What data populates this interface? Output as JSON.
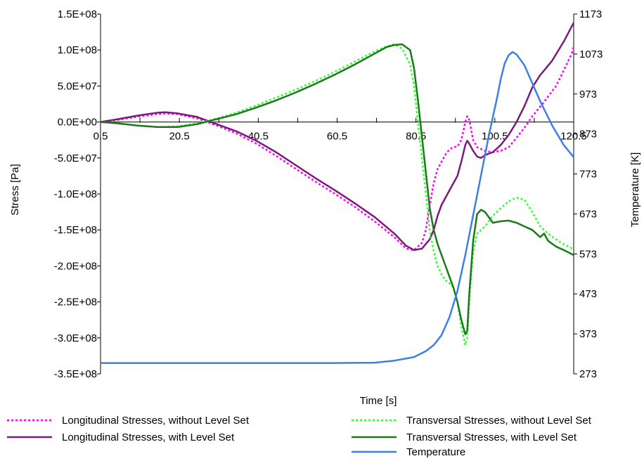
{
  "chart_data": {
    "type": "line",
    "xlabel": "Time [s]",
    "ylabel": "Stress [Pa]",
    "y2label": "Temperature [K]",
    "xlim": [
      0.5,
      120.5
    ],
    "ylim": [
      -350000000,
      150000000
    ],
    "y2lim": [
      273,
      1173
    ],
    "x_ticks": [
      "0.5",
      "20.5",
      "40.5",
      "60.5",
      "80.5",
      "100.5",
      "120.5"
    ],
    "y_ticks": [
      "1.5E+08",
      "1.0E+08",
      "5.0E+07",
      "0.0E+00",
      "-5.0E+07",
      "-1.0E+08",
      "-1.5E+08",
      "-2.0E+08",
      "-2.5E+08",
      "-3.0E+08",
      "-3.5E+08"
    ],
    "y2_ticks": [
      "1173",
      "1073",
      "973",
      "873",
      "773",
      "673",
      "573",
      "473",
      "373",
      "273"
    ],
    "legend": "bottom",
    "grid": false,
    "series": [
      {
        "name": "Longitudinal Stresses, without Level Set",
        "axis": "left",
        "color": "#ff00ff",
        "style": "dotted",
        "points": [
          [
            0.5,
            0
          ],
          [
            5,
            3000000
          ],
          [
            10,
            7500000
          ],
          [
            15,
            11000000
          ],
          [
            17,
            12000000
          ],
          [
            20,
            11000000
          ],
          [
            25,
            5000000
          ],
          [
            30,
            -5000000
          ],
          [
            35,
            -16000000
          ],
          [
            40,
            -30000000
          ],
          [
            45,
            -47000000
          ],
          [
            50,
            -65000000
          ],
          [
            55,
            -83000000
          ],
          [
            60,
            -100000000
          ],
          [
            65,
            -118000000
          ],
          [
            70,
            -138000000
          ],
          [
            75,
            -160000000
          ],
          [
            78,
            -176000000
          ],
          [
            80,
            -178000000
          ],
          [
            82,
            -168000000
          ],
          [
            83,
            -150000000
          ],
          [
            84,
            -115000000
          ],
          [
            85,
            -85000000
          ],
          [
            86,
            -65000000
          ],
          [
            87,
            -55000000
          ],
          [
            88,
            -45000000
          ],
          [
            89,
            -38000000
          ],
          [
            90,
            -35000000
          ],
          [
            91,
            -34000000
          ],
          [
            92,
            -25000000
          ],
          [
            93,
            0
          ],
          [
            93.5,
            8000000
          ],
          [
            94,
            3000000
          ],
          [
            95,
            -25000000
          ],
          [
            96,
            -35000000
          ],
          [
            98,
            -40000000
          ],
          [
            100,
            -42000000
          ],
          [
            102,
            -40000000
          ],
          [
            104,
            -35000000
          ],
          [
            106,
            -22000000
          ],
          [
            108,
            -8000000
          ],
          [
            110,
            8000000
          ],
          [
            113,
            28000000
          ],
          [
            116,
            50000000
          ],
          [
            118,
            72000000
          ],
          [
            120,
            95000000
          ],
          [
            120.5,
            105000000
          ]
        ]
      },
      {
        "name": "Longitudinal Stresses, with Level Set",
        "axis": "left",
        "color": "#7b1a7b",
        "style": "solid",
        "points": [
          [
            0.5,
            0
          ],
          [
            5,
            4000000
          ],
          [
            10,
            9000000
          ],
          [
            15,
            13000000
          ],
          [
            17,
            13500000
          ],
          [
            20,
            12000000
          ],
          [
            25,
            7000000
          ],
          [
            30,
            -3000000
          ],
          [
            35,
            -13000000
          ],
          [
            40,
            -26000000
          ],
          [
            45,
            -42000000
          ],
          [
            50,
            -60000000
          ],
          [
            55,
            -78000000
          ],
          [
            60,
            -95000000
          ],
          [
            65,
            -113000000
          ],
          [
            70,
            -132000000
          ],
          [
            75,
            -155000000
          ],
          [
            78,
            -172000000
          ],
          [
            80,
            -178000000
          ],
          [
            82,
            -176000000
          ],
          [
            84,
            -163000000
          ],
          [
            85,
            -150000000
          ],
          [
            86,
            -130000000
          ],
          [
            87,
            -115000000
          ],
          [
            88,
            -105000000
          ],
          [
            89,
            -95000000
          ],
          [
            90,
            -85000000
          ],
          [
            91,
            -75000000
          ],
          [
            92,
            -55000000
          ],
          [
            93,
            -32000000
          ],
          [
            93.5,
            -26000000
          ],
          [
            94,
            -30000000
          ],
          [
            95,
            -40000000
          ],
          [
            96,
            -48000000
          ],
          [
            97,
            -50000000
          ],
          [
            98,
            -46000000
          ],
          [
            100,
            -42000000
          ],
          [
            102,
            -32000000
          ],
          [
            104,
            -18000000
          ],
          [
            106,
            0
          ],
          [
            108,
            22000000
          ],
          [
            110,
            48000000
          ],
          [
            112,
            65000000
          ],
          [
            115,
            85000000
          ],
          [
            118,
            112000000
          ],
          [
            120.5,
            138000000
          ]
        ]
      },
      {
        "name": "Transversal Stresses, without Level Set",
        "axis": "left",
        "color": "#33ff33",
        "style": "dotted",
        "points": [
          [
            0.5,
            0
          ],
          [
            5,
            -2000000
          ],
          [
            10,
            -5000000
          ],
          [
            15,
            -7000000
          ],
          [
            20,
            -6000000
          ],
          [
            25,
            -2000000
          ],
          [
            30,
            5000000
          ],
          [
            35,
            13000000
          ],
          [
            40,
            23000000
          ],
          [
            45,
            34000000
          ],
          [
            50,
            45000000
          ],
          [
            55,
            57000000
          ],
          [
            60,
            70000000
          ],
          [
            65,
            84000000
          ],
          [
            70,
            98000000
          ],
          [
            73,
            105000000
          ],
          [
            75,
            108000000
          ],
          [
            77,
            102000000
          ],
          [
            79,
            80000000
          ],
          [
            80,
            50000000
          ],
          [
            81,
            0
          ],
          [
            82,
            -50000000
          ],
          [
            83,
            -100000000
          ],
          [
            84,
            -150000000
          ],
          [
            85,
            -180000000
          ],
          [
            86,
            -200000000
          ],
          [
            87,
            -212000000
          ],
          [
            88,
            -220000000
          ],
          [
            89,
            -224000000
          ],
          [
            90,
            -230000000
          ],
          [
            91,
            -250000000
          ],
          [
            92,
            -285000000
          ],
          [
            93,
            -310000000
          ],
          [
            93.5,
            -300000000
          ],
          [
            94,
            -250000000
          ],
          [
            95,
            -180000000
          ],
          [
            96,
            -155000000
          ],
          [
            98,
            -145000000
          ],
          [
            100,
            -130000000
          ],
          [
            102,
            -120000000
          ],
          [
            104,
            -110000000
          ],
          [
            106,
            -105000000
          ],
          [
            108,
            -108000000
          ],
          [
            110,
            -125000000
          ],
          [
            112,
            -145000000
          ],
          [
            114,
            -155000000
          ],
          [
            116,
            -163000000
          ],
          [
            118,
            -170000000
          ],
          [
            120.5,
            -177000000
          ]
        ]
      },
      {
        "name": "Transversal Stresses, with Level Set",
        "axis": "left",
        "color": "#1a7a1a",
        "style": "solid",
        "points": [
          [
            0.5,
            0
          ],
          [
            5,
            -2000000
          ],
          [
            10,
            -5000000
          ],
          [
            15,
            -7000000
          ],
          [
            20,
            -7000000
          ],
          [
            25,
            -3000000
          ],
          [
            30,
            4000000
          ],
          [
            35,
            11000000
          ],
          [
            40,
            20000000
          ],
          [
            45,
            30000000
          ],
          [
            50,
            41000000
          ],
          [
            55,
            53000000
          ],
          [
            60,
            66000000
          ],
          [
            65,
            80000000
          ],
          [
            70,
            95000000
          ],
          [
            73,
            104000000
          ],
          [
            75,
            107000000
          ],
          [
            77,
            108000000
          ],
          [
            79,
            100000000
          ],
          [
            80,
            75000000
          ],
          [
            81,
            30000000
          ],
          [
            82,
            -20000000
          ],
          [
            83,
            -70000000
          ],
          [
            84,
            -120000000
          ],
          [
            85,
            -150000000
          ],
          [
            86,
            -170000000
          ],
          [
            87,
            -185000000
          ],
          [
            88,
            -200000000
          ],
          [
            89,
            -215000000
          ],
          [
            90,
            -230000000
          ],
          [
            91,
            -250000000
          ],
          [
            92,
            -275000000
          ],
          [
            93,
            -295000000
          ],
          [
            93.5,
            -290000000
          ],
          [
            94,
            -240000000
          ],
          [
            95,
            -165000000
          ],
          [
            96,
            -128000000
          ],
          [
            97,
            -122000000
          ],
          [
            98,
            -125000000
          ],
          [
            100,
            -140000000
          ],
          [
            102,
            -138000000
          ],
          [
            104,
            -137000000
          ],
          [
            106,
            -140000000
          ],
          [
            108,
            -145000000
          ],
          [
            110,
            -150000000
          ],
          [
            112,
            -160000000
          ],
          [
            113,
            -155000000
          ],
          [
            114,
            -165000000
          ],
          [
            116,
            -173000000
          ],
          [
            118,
            -178000000
          ],
          [
            120.5,
            -185000000
          ]
        ]
      },
      {
        "name": "Temperature",
        "axis": "right",
        "color": "#3b7fe8",
        "style": "solid",
        "points": [
          [
            0.5,
            300
          ],
          [
            20,
            300
          ],
          [
            40,
            300
          ],
          [
            60,
            300
          ],
          [
            70,
            301
          ],
          [
            75,
            306
          ],
          [
            80,
            315
          ],
          [
            83,
            330
          ],
          [
            85,
            345
          ],
          [
            87,
            370
          ],
          [
            89,
            415
          ],
          [
            91,
            480
          ],
          [
            93,
            570
          ],
          [
            95,
            670
          ],
          [
            97,
            770
          ],
          [
            99,
            870
          ],
          [
            101,
            960
          ],
          [
            102,
            1010
          ],
          [
            103,
            1050
          ],
          [
            104,
            1070
          ],
          [
            105,
            1078
          ],
          [
            106,
            1072
          ],
          [
            108,
            1045
          ],
          [
            110,
            1000
          ],
          [
            112,
            955
          ],
          [
            115,
            895
          ],
          [
            118,
            845
          ],
          [
            120.5,
            815
          ]
        ]
      }
    ]
  }
}
